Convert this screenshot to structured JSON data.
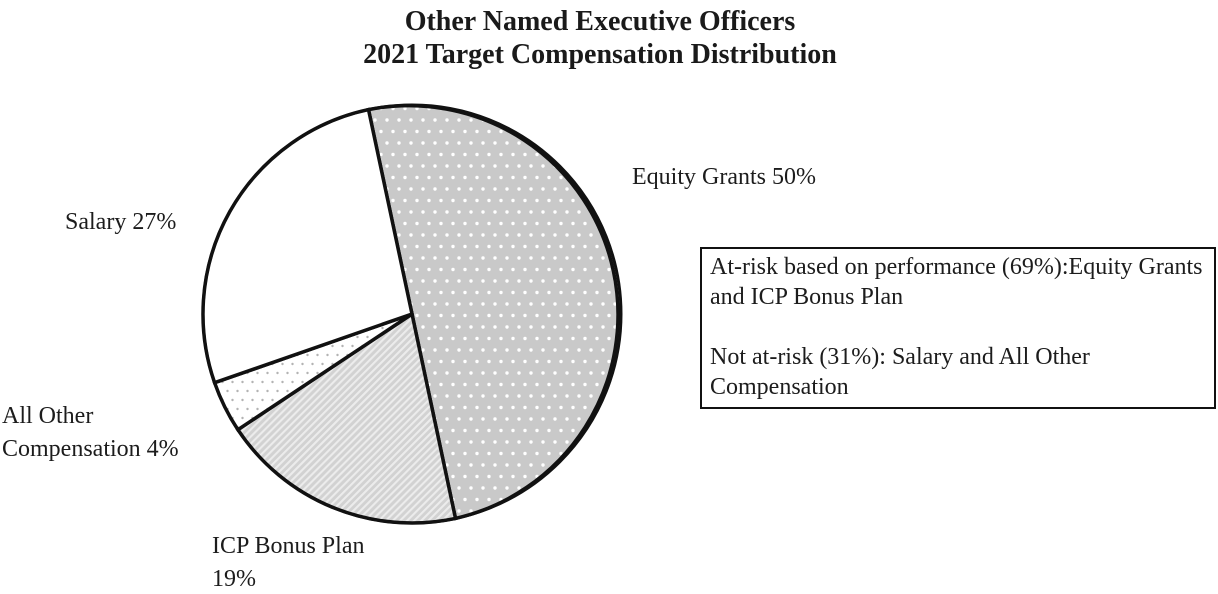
{
  "title": {
    "line1": "Other Named Executive Officers",
    "line2": "2021 Target Compensation Distribution"
  },
  "chart_data": {
    "type": "pie",
    "title": "Other Named Executive Officers 2021 Target Compensation Distribution",
    "categories": [
      "Equity Grants",
      "ICP Bonus Plan",
      "All Other Compensation",
      "Salary"
    ],
    "values": [
      50,
      19,
      4,
      27
    ],
    "slices": [
      {
        "label": "Equity Grants",
        "pct": 50,
        "pattern": "gray-dots"
      },
      {
        "label": "ICP Bonus Plan",
        "pct": 19,
        "pattern": "diagonal-stripes"
      },
      {
        "label": "All Other Compensation",
        "pct": 4,
        "pattern": "white-dots"
      },
      {
        "label": "Salary",
        "pct": 27,
        "pattern": "solid-white"
      }
    ],
    "start_angle_deg": -12,
    "direction": "clockwise",
    "legend_position": "none",
    "colors": {
      "outline": "#111111",
      "slice_gray": "#c9c9c9",
      "dot_white": "#ffffff",
      "stripe_gray": "#d2d2d2",
      "stripe_light": "#ececec",
      "white": "#ffffff",
      "dot_gray": "#b3b3b3"
    }
  },
  "slice_labels": {
    "equity": {
      "lines": [
        "Equity Grants 50%",
        ""
      ]
    },
    "salary": {
      "lines": [
        "Salary 27%",
        ""
      ]
    },
    "all_other": {
      "lines": [
        "All Other",
        "Compensation 4%"
      ]
    },
    "icp": {
      "lines": [
        "ICP Bonus Plan",
        "19%"
      ]
    }
  },
  "note_box": {
    "paragraph1": "At-risk based on performance (69%):Equity Grants and ICP Bonus Plan",
    "paragraph2": "Not at-risk (31%): Salary and All Other Compensation"
  }
}
